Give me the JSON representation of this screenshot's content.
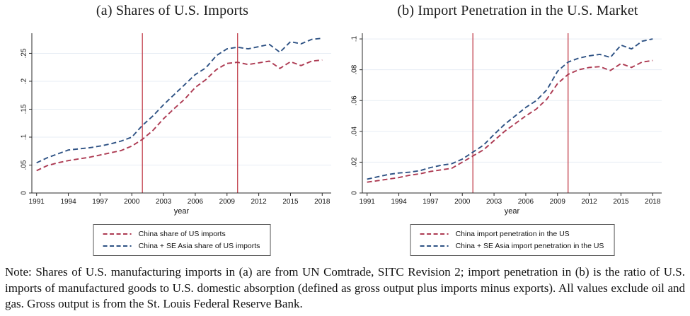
{
  "figure": {
    "note": "Note: Shares of U.S. manufacturing imports in (a) are from UN Comtrade, SITC Revision 2; import penetration in (b) is the ratio of U.S. imports of manufactured goods to U.S. domestic absorption (defined as gross output plus imports minus exports). All values exclude oil and gas. Gross output is from the St. Louis Federal Reserve Bank."
  },
  "colors": {
    "series_red": "#ad3a52",
    "series_navy": "#2e5284",
    "vline_red": "#c2404c",
    "gridline": "#e7edf4",
    "axis": "#2b2b2b",
    "text": "#111111"
  },
  "chart_data": [
    {
      "type": "line",
      "title": "(a) Shares of U.S. Imports",
      "xlabel": "year",
      "grid": "horizontal",
      "legend_position": "bottom",
      "xlim": [
        1990.55,
        2018.85
      ],
      "ylim": [
        0,
        0.286
      ],
      "xticks": [
        1991,
        1994,
        1997,
        2000,
        2003,
        2006,
        2009,
        2012,
        2015,
        2018
      ],
      "yticks": [
        0,
        0.05,
        0.1,
        0.15,
        0.2,
        0.25
      ],
      "ytick_labels": [
        "0",
        ".05",
        ".1",
        ".15",
        ".2",
        ".25"
      ],
      "vlines": [
        2001,
        2010
      ],
      "x": [
        1991,
        1992,
        1993,
        1994,
        1995,
        1996,
        1997,
        1998,
        1999,
        2000,
        2001,
        2002,
        2003,
        2004,
        2005,
        2006,
        2007,
        2008,
        2009,
        2010,
        2011,
        2012,
        2013,
        2014,
        2015,
        2016,
        2017,
        2018
      ],
      "series": [
        {
          "name": "China share of US imports",
          "color": "#ad3a52",
          "values": [
            0.04,
            0.049,
            0.054,
            0.058,
            0.061,
            0.064,
            0.068,
            0.072,
            0.076,
            0.084,
            0.096,
            0.112,
            0.133,
            0.151,
            0.168,
            0.189,
            0.203,
            0.221,
            0.232,
            0.234,
            0.23,
            0.233,
            0.236,
            0.223,
            0.235,
            0.228,
            0.236,
            0.238
          ]
        },
        {
          "name": "China + SE Asia share of US imports",
          "color": "#2e5284",
          "values": [
            0.054,
            0.063,
            0.07,
            0.077,
            0.079,
            0.081,
            0.084,
            0.088,
            0.093,
            0.1,
            0.121,
            0.138,
            0.158,
            0.176,
            0.194,
            0.212,
            0.224,
            0.246,
            0.258,
            0.261,
            0.258,
            0.262,
            0.266,
            0.252,
            0.271,
            0.267,
            0.275,
            0.277
          ]
        }
      ]
    },
    {
      "type": "line",
      "title": "(b) Import Penetration in the U.S. Market",
      "xlabel": "year",
      "grid": "horizontal",
      "legend_position": "bottom",
      "xlim": [
        1990.55,
        2018.85
      ],
      "ylim": [
        0,
        0.1037
      ],
      "xticks": [
        1991,
        1994,
        1997,
        2000,
        2003,
        2006,
        2009,
        2012,
        2015,
        2018
      ],
      "yticks": [
        0,
        0.02,
        0.04,
        0.06,
        0.08,
        0.1
      ],
      "ytick_labels": [
        "0",
        ".02",
        ".04",
        ".06",
        ".08",
        ".1"
      ],
      "vlines": [
        2001,
        2010
      ],
      "x": [
        1991,
        1992,
        1993,
        1994,
        1995,
        1996,
        1997,
        1998,
        1999,
        2000,
        2001,
        2002,
        2003,
        2004,
        2005,
        2006,
        2007,
        2008,
        2009,
        2010,
        2011,
        2012,
        2013,
        2014,
        2015,
        2016,
        2017,
        2018
      ],
      "series": [
        {
          "name": "China import penetration in the US",
          "color": "#ad3a52",
          "values": [
            0.007,
            0.008,
            0.009,
            0.01,
            0.0115,
            0.0125,
            0.014,
            0.015,
            0.016,
            0.02,
            0.024,
            0.028,
            0.034,
            0.04,
            0.045,
            0.05,
            0.0545,
            0.061,
            0.071,
            0.077,
            0.08,
            0.0815,
            0.082,
            0.0795,
            0.084,
            0.0815,
            0.085,
            0.086
          ]
        },
        {
          "name": "China + SE Asia import penetration in the US",
          "color": "#2e5284",
          "values": [
            0.009,
            0.0105,
            0.012,
            0.013,
            0.0135,
            0.0145,
            0.0165,
            0.018,
            0.019,
            0.022,
            0.0265,
            0.031,
            0.038,
            0.0445,
            0.05,
            0.0555,
            0.06,
            0.067,
            0.079,
            0.085,
            0.0875,
            0.089,
            0.09,
            0.088,
            0.096,
            0.0935,
            0.0985,
            0.1
          ]
        }
      ]
    }
  ]
}
